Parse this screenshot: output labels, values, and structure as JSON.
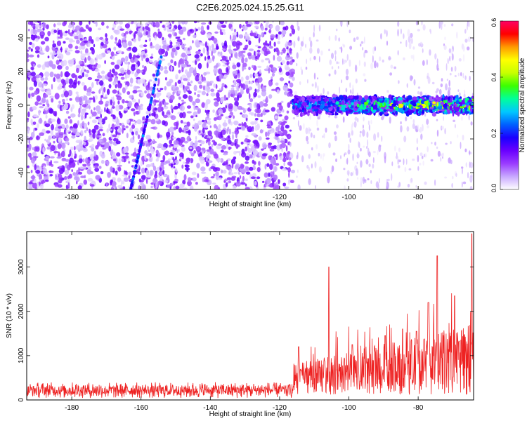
{
  "figure_title": "C2E6.2025.024.15.25.G11",
  "chart_data": [
    {
      "type": "heatmap",
      "title": "C2E6.2025.024.15.25.G11",
      "xlabel": "Height of straight line (km)",
      "ylabel": "Frequency (Hz)",
      "xlim": [
        -193,
        -64
      ],
      "ylim": [
        -50,
        50
      ],
      "xticks": [
        -180,
        -160,
        -140,
        -120,
        -100,
        -80
      ],
      "yticks": [
        -40,
        -20,
        0,
        20,
        40
      ],
      "colorbar": {
        "label": "Normalized spectral amplitude",
        "range": [
          0.0,
          0.6
        ],
        "ticks": [
          "0.0",
          "0.2",
          "0.4",
          "0.6"
        ],
        "colors": [
          "#ffffff",
          "#c8a8ff",
          "#9a3cff",
          "#6a00ff",
          "#1a00ff",
          "#0060ff",
          "#00c8ff",
          "#00ff9a",
          "#3cff00",
          "#c8ff00",
          "#ffff00",
          "#ff9a00",
          "#ff0000",
          "#ff0064"
        ]
      },
      "regions": [
        {
          "x_range": [
            -193,
            -116
          ],
          "mean_level": 0.08,
          "freq_spread_hz": 50
        },
        {
          "x_range": [
            -116,
            -64
          ],
          "mean_level": 0.3,
          "center_freq_hz": 0,
          "half_width_hz": 5
        }
      ],
      "streak": {
        "x": [
          -163,
          -154
        ],
        "y": [
          -50,
          30
        ],
        "level": 0.22
      },
      "grid": false
    },
    {
      "type": "line",
      "xlabel": "Height of straight line (km)",
      "ylabel": "SNR (10 * v/v)",
      "xlim": [
        -193,
        -64
      ],
      "ylim": [
        0,
        3800
      ],
      "xticks": [
        -180,
        -160,
        -140,
        -120,
        -100,
        -80
      ],
      "yticks": [
        0,
        1000,
        2000,
        3000
      ],
      "color": "#ee2222",
      "segments": [
        {
          "x_range": [
            -193,
            -116
          ],
          "baseline": 220,
          "spread": 180
        },
        {
          "x_range": [
            -116,
            -64
          ],
          "baseline": 420,
          "spread": 600
        }
      ],
      "peaks": [
        {
          "x": -105.8,
          "y": 3000
        },
        {
          "x": -74.5,
          "y": 3250
        },
        {
          "x": -64.5,
          "y": 3750
        },
        {
          "x": -114.5,
          "y": 1200
        },
        {
          "x": -99.0,
          "y": 1250
        },
        {
          "x": -89.5,
          "y": 1450
        },
        {
          "x": -84.5,
          "y": 1600
        },
        {
          "x": -77.0,
          "y": 2200
        },
        {
          "x": -69.5,
          "y": 2350
        },
        {
          "x": -80.5,
          "y": 1550
        }
      ],
      "grid": false
    }
  ]
}
